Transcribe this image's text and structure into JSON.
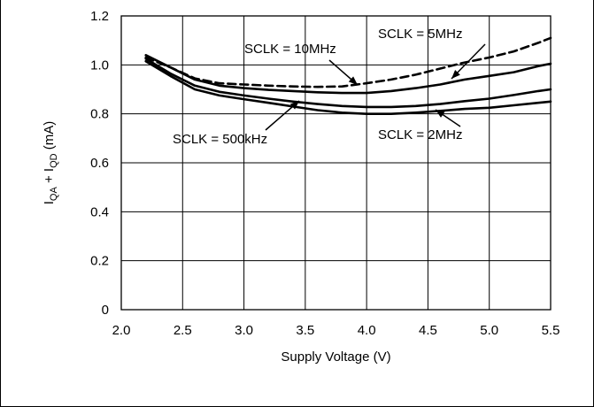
{
  "chart_data": {
    "type": "line",
    "xlabel": "Supply Voltage (V)",
    "ylabel_main": "I",
    "ylabel_sub1": "QA",
    "ylabel_mid": " + I",
    "ylabel_sub2": "QD",
    "ylabel_unit": " (mA)",
    "xlim": [
      2.0,
      5.5
    ],
    "ylim": [
      0,
      1.2
    ],
    "xticks": [
      "2.0",
      "2.5",
      "3.0",
      "3.5",
      "4.0",
      "4.5",
      "5.0",
      "5.5"
    ],
    "yticks": [
      "0",
      "0.2",
      "0.4",
      "0.6",
      "0.8",
      "1.0",
      "1.2"
    ],
    "grid": true,
    "series": [
      {
        "name": "SCLK = 10MHz",
        "dashed": true,
        "x": [
          2.2,
          2.4,
          2.6,
          2.8,
          3.0,
          3.2,
          3.4,
          3.6,
          3.8,
          4.0,
          4.2,
          4.4,
          4.6,
          4.8,
          5.0,
          5.2,
          5.4,
          5.5
        ],
        "y": [
          1.03,
          0.99,
          0.945,
          0.925,
          0.92,
          0.915,
          0.912,
          0.91,
          0.912,
          0.925,
          0.94,
          0.96,
          0.985,
          1.01,
          1.03,
          1.055,
          1.09,
          1.11
        ]
      },
      {
        "name": "SCLK = 5MHz",
        "dashed": false,
        "x": [
          2.2,
          2.4,
          2.6,
          2.8,
          3.0,
          3.2,
          3.4,
          3.6,
          3.8,
          4.0,
          4.2,
          4.4,
          4.6,
          4.8,
          5.0,
          5.2,
          5.4,
          5.5
        ],
        "y": [
          1.04,
          0.99,
          0.94,
          0.915,
          0.905,
          0.898,
          0.893,
          0.888,
          0.885,
          0.885,
          0.893,
          0.905,
          0.92,
          0.94,
          0.955,
          0.97,
          0.995,
          1.005
        ]
      },
      {
        "name": "SCLK = 2MHz",
        "dashed": false,
        "x": [
          2.2,
          2.4,
          2.6,
          2.8,
          3.0,
          3.2,
          3.4,
          3.6,
          3.8,
          4.0,
          4.2,
          4.4,
          4.6,
          4.8,
          5.0,
          5.2,
          5.4,
          5.5
        ],
        "y": [
          1.025,
          0.965,
          0.915,
          0.89,
          0.875,
          0.862,
          0.85,
          0.84,
          0.832,
          0.828,
          0.828,
          0.832,
          0.84,
          0.852,
          0.862,
          0.877,
          0.893,
          0.9
        ]
      },
      {
        "name": "SCLK = 500kHz",
        "dashed": false,
        "x": [
          2.2,
          2.4,
          2.6,
          2.8,
          3.0,
          3.2,
          3.4,
          3.6,
          3.8,
          4.0,
          4.2,
          4.4,
          4.6,
          4.8,
          5.0,
          5.2,
          5.4,
          5.5
        ],
        "y": [
          1.015,
          0.955,
          0.9,
          0.875,
          0.86,
          0.845,
          0.83,
          0.815,
          0.805,
          0.8,
          0.8,
          0.805,
          0.812,
          0.82,
          0.825,
          0.835,
          0.845,
          0.85
        ]
      }
    ],
    "annotations": [
      {
        "text": "SCLK = 10MHz",
        "series": "SCLK = 10MHz"
      },
      {
        "text": "SCLK = 5MHz",
        "series": "SCLK = 5MHz"
      },
      {
        "text": "SCLK = 500kHz",
        "series": "SCLK = 500kHz"
      },
      {
        "text": "SCLK = 2MHz",
        "series": "SCLK = 2MHz"
      }
    ]
  }
}
